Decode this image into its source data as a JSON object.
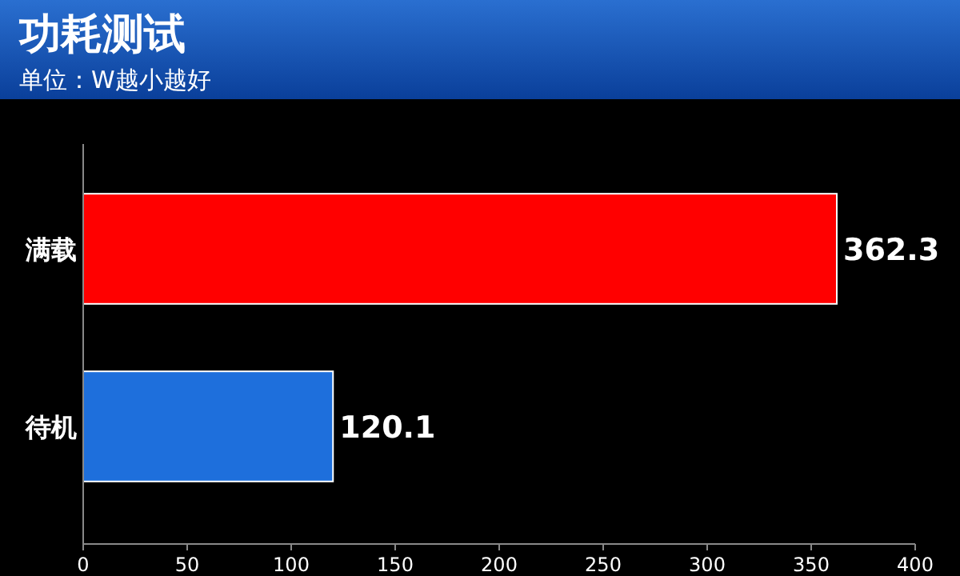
{
  "chart_data": {
    "type": "bar",
    "orientation": "horizontal",
    "title": "功耗测试",
    "subtitle": "单位：W越小越好",
    "categories": [
      "满载",
      "待机"
    ],
    "values": [
      362.3,
      120.1
    ],
    "colors": [
      "#ff0000",
      "#1e6fdc"
    ],
    "xlim": [
      0,
      400
    ],
    "xticks": [
      0,
      50,
      100,
      150,
      200,
      250,
      300,
      350,
      400
    ],
    "data_labels": true
  }
}
